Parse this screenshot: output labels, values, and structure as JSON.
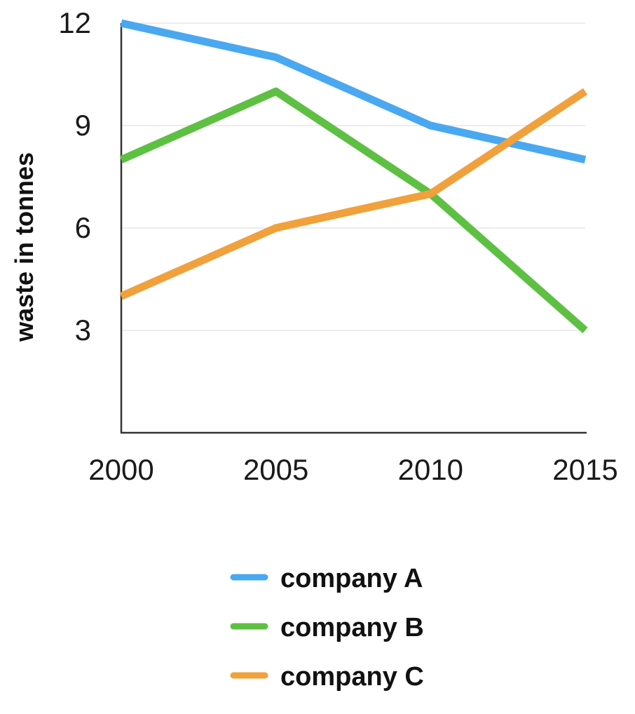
{
  "chart_data": {
    "type": "line",
    "title": "",
    "xlabel": "",
    "ylabel": "waste in tonnes",
    "x": [
      "2000",
      "2005",
      "2010",
      "2015"
    ],
    "yticks": [
      "3",
      "6",
      "9",
      "12"
    ],
    "ylim": [
      0,
      12
    ],
    "grid": true,
    "legend_position": "bottom",
    "series": [
      {
        "name": "company A",
        "color": "#4aa8f0",
        "values": [
          12,
          11,
          9,
          8
        ]
      },
      {
        "name": "company B",
        "color": "#5ec043",
        "values": [
          8,
          10,
          7,
          3
        ]
      },
      {
        "name": "company C",
        "color": "#f0a13c",
        "values": [
          4,
          6,
          7,
          10
        ]
      }
    ]
  }
}
